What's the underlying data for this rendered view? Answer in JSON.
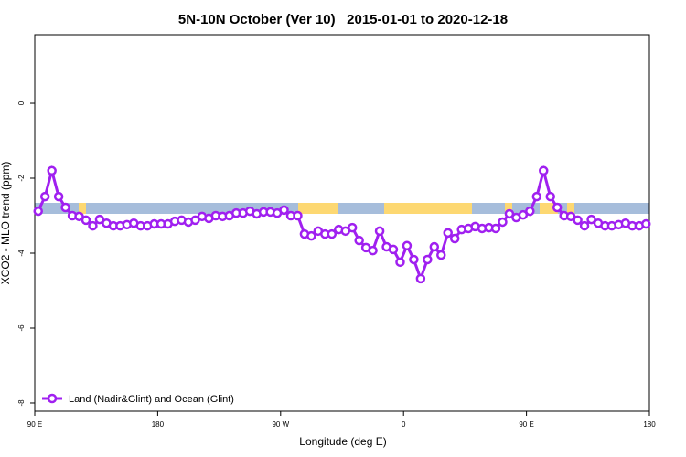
{
  "chart_data": {
    "type": "line",
    "title": "5N-10N October (Ver 10)   2015-01-01 to 2020-12-18",
    "x_label": "Longitude (deg E)",
    "y_label": "XCO2 - MLO trend (ppm)",
    "xlim": [
      90,
      540
    ],
    "xticks": [
      {
        "value": 90,
        "label": "90 E"
      },
      180,
      {
        "value": 270,
        "label": "90 W"
      },
      {
        "value": 360,
        "label": "0"
      },
      {
        "value": 450,
        "label": "90 E"
      },
      {
        "value": 540,
        "label": "180"
      }
    ],
    "ylim": [
      -8.22,
      1.83
    ],
    "yticks": [
      -8,
      -6,
      -4,
      -2,
      0
    ],
    "legend": "bottomleft",
    "x": [
      92.5,
      97.5,
      102.5,
      107.5,
      112.5,
      117.5,
      122.5,
      127.5,
      132.5,
      137.5,
      142.5,
      147.5,
      152.5,
      157.5,
      162.5,
      167.5,
      172.5,
      177.5,
      182.5,
      187.5,
      192.5,
      197.5,
      202.5,
      207.5,
      212.5,
      217.5,
      222.5,
      227.5,
      232.5,
      237.5,
      242.5,
      247.5,
      252.5,
      257.5,
      262.5,
      267.5,
      272.5,
      277.5,
      282.5,
      287.5,
      292.5,
      297.5,
      302.5,
      307.5,
      312.5,
      317.5,
      322.5,
      327.5,
      332.5,
      337.5,
      342.5,
      347.5,
      352.5,
      357.5,
      362.5,
      367.5,
      372.5,
      377.5,
      382.5,
      387.5,
      392.5,
      397.5,
      402.5,
      407.5,
      412.5,
      417.5,
      422.5,
      427.5,
      432.5,
      437.5,
      442.5,
      447.5,
      452.5,
      457.5,
      462.5,
      467.5,
      472.5,
      477.5,
      482.5,
      487.5,
      492.5,
      497.5,
      502.5,
      507.5,
      512.5,
      517.5,
      522.5,
      527.5,
      532.5,
      537.5
    ],
    "series": [
      {
        "name": "Land (Nadir&Glint) and Ocean (Glint)",
        "color": "#a020f0",
        "values": [
          -2.88,
          -2.49,
          -1.8,
          -2.49,
          -2.78,
          -3.0,
          -3.02,
          -3.12,
          -3.27,
          -3.1,
          -3.2,
          -3.27,
          -3.27,
          -3.24,
          -3.2,
          -3.27,
          -3.27,
          -3.22,
          -3.22,
          -3.22,
          -3.15,
          -3.12,
          -3.17,
          -3.12,
          -3.02,
          -3.07,
          -3.0,
          -3.02,
          -3.0,
          -2.93,
          -2.93,
          -2.88,
          -2.95,
          -2.9,
          -2.9,
          -2.93,
          -2.85,
          -3.0,
          -3.0,
          -3.49,
          -3.54,
          -3.41,
          -3.49,
          -3.49,
          -3.37,
          -3.41,
          -3.32,
          -3.66,
          -3.85,
          -3.93,
          -3.41,
          -3.83,
          -3.9,
          -4.24,
          -3.8,
          -4.17,
          -4.68,
          -4.17,
          -3.83,
          -4.05,
          -3.46,
          -3.61,
          -3.37,
          -3.34,
          -3.29,
          -3.34,
          -3.32,
          -3.34,
          -3.17,
          -2.95,
          -3.05,
          -2.98,
          -2.88,
          -2.49,
          -1.8,
          -2.49,
          -2.78,
          -3.0,
          -3.02,
          -3.12,
          -3.27,
          -3.1,
          -3.2,
          -3.27,
          -3.27,
          -3.24,
          -3.2,
          -3.27,
          -3.27,
          -3.22
        ]
      }
    ]
  }
}
